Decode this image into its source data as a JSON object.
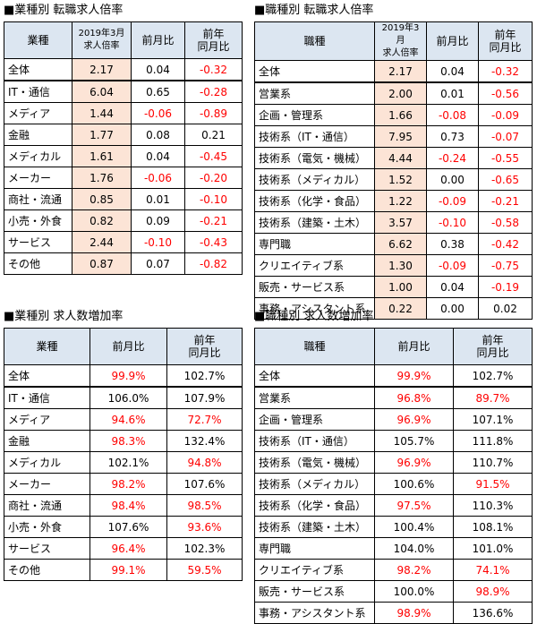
{
  "sections": {
    "t1": {
      "title": "■業種別 転職求人倍率",
      "headers": [
        "業種",
        "2019年3月\n求人倍率",
        "前月比",
        "前年\n同月比"
      ],
      "rows": [
        [
          "全体",
          "2.17",
          "0.04",
          "-0.32"
        ],
        [
          "IT・通信",
          "6.04",
          "0.65",
          "-0.28"
        ],
        [
          "メディア",
          "1.44",
          "-0.06",
          "-0.89"
        ],
        [
          "金融",
          "1.77",
          "0.08",
          "0.21"
        ],
        [
          "メディカル",
          "1.61",
          "0.04",
          "-0.45"
        ],
        [
          "メーカー",
          "1.76",
          "-0.06",
          "-0.20"
        ],
        [
          "商社・流通",
          "0.85",
          "0.01",
          "-0.10"
        ],
        [
          "小売・外食",
          "0.82",
          "0.09",
          "-0.21"
        ],
        [
          "サービス",
          "2.44",
          "-0.10",
          "-0.43"
        ],
        [
          "その他",
          "0.87",
          "0.07",
          "-0.82"
        ]
      ]
    },
    "t2": {
      "title": "■職種別 転職求人倍率",
      "headers": [
        "職種",
        "2019年3月\n求人倍率",
        "前月比",
        "前年\n同月比"
      ],
      "rows": [
        [
          "全体",
          "2.17",
          "0.04",
          "-0.32"
        ],
        [
          "営業系",
          "2.00",
          "0.01",
          "-0.56"
        ],
        [
          "企画・管理系",
          "1.66",
          "-0.08",
          "-0.09"
        ],
        [
          "技術系（IT・通信）",
          "7.95",
          "0.73",
          "-0.07"
        ],
        [
          "技術系（電気・機械）",
          "4.44",
          "-0.24",
          "-0.55"
        ],
        [
          "技術系（メディカル）",
          "1.52",
          "0.00",
          "-0.65"
        ],
        [
          "技術系（化学・食品）",
          "1.22",
          "-0.09",
          "-0.21"
        ],
        [
          "技術系（建築・土木）",
          "3.57",
          "-0.10",
          "-0.58"
        ],
        [
          "専門職",
          "6.62",
          "0.38",
          "-0.42"
        ],
        [
          "クリエイティブ系",
          "1.30",
          "-0.09",
          "-0.75"
        ],
        [
          "販売・サービス系",
          "1.00",
          "0.04",
          "-0.19"
        ],
        [
          "事務・アシスタント系",
          "0.22",
          "0.00",
          "0.02"
        ]
      ]
    },
    "t3": {
      "title": "■業種別 求人数増加率",
      "headers": [
        "業種",
        "前月比",
        "前年\n同月比"
      ],
      "rows": [
        [
          "全体",
          "99.9%",
          "102.7%"
        ],
        [
          "IT・通信",
          "106.0%",
          "107.9%"
        ],
        [
          "メディア",
          "94.6%",
          "72.7%"
        ],
        [
          "金融",
          "98.3%",
          "132.4%"
        ],
        [
          "メディカル",
          "102.1%",
          "94.8%"
        ],
        [
          "メーカー",
          "98.2%",
          "107.6%"
        ],
        [
          "商社・流通",
          "98.4%",
          "98.5%"
        ],
        [
          "小売・外食",
          "107.6%",
          "93.6%"
        ],
        [
          "サービス",
          "96.4%",
          "102.3%"
        ],
        [
          "その他",
          "99.1%",
          "59.5%"
        ]
      ]
    },
    "t4": {
      "title": "■職種別 求人数増加率",
      "headers": [
        "職種",
        "前月比",
        "前年\n同月比"
      ],
      "rows": [
        [
          "全体",
          "99.9%",
          "102.7%"
        ],
        [
          "営業系",
          "96.8%",
          "89.7%"
        ],
        [
          "企画・管理系",
          "96.9%",
          "107.1%"
        ],
        [
          "技術系（IT・通信）",
          "105.7%",
          "111.8%"
        ],
        [
          "技術系（電気・機械）",
          "96.9%",
          "110.7%"
        ],
        [
          "技術系（メディカル）",
          "100.6%",
          "91.5%"
        ],
        [
          "技術系（化学・食品）",
          "97.5%",
          "110.3%"
        ],
        [
          "技術系（建築・土木）",
          "100.4%",
          "108.1%"
        ],
        [
          "専門職",
          "104.0%",
          "101.0%"
        ],
        [
          "クリエイティブ系",
          "98.2%",
          "74.1%"
        ],
        [
          "販売・サービス系",
          "100.0%",
          "98.9%"
        ],
        [
          "事務・アシスタント系",
          "98.9%",
          "136.6%"
        ]
      ]
    }
  },
  "colors": {
    "header_bg": "#dce6f1",
    "highlight_bg": "#fce4d6",
    "negative_text": "#ff0000"
  }
}
